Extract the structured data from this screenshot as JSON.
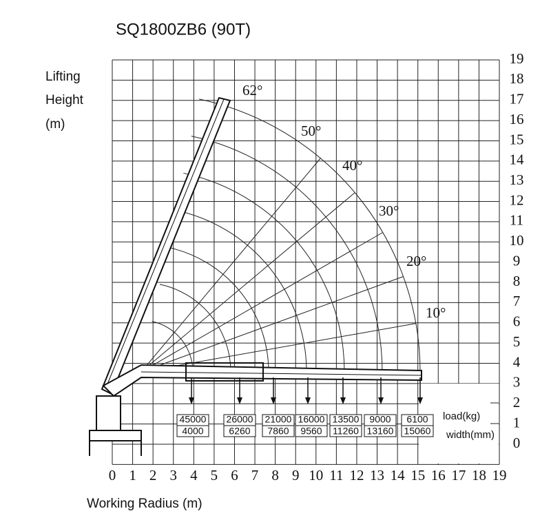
{
  "title": "SQ1800ZB6  (90T)",
  "y_label": [
    "Lifting",
    "Height",
    "(m)"
  ],
  "x_label": "Working Radius (m)",
  "x_ticks": [
    0,
    1,
    2,
    3,
    4,
    5,
    6,
    7,
    8,
    9,
    10,
    11,
    12,
    13,
    14,
    15,
    16,
    17,
    18,
    19
  ],
  "y_ticks": [
    0,
    1,
    2,
    3,
    4,
    5,
    6,
    7,
    8,
    9,
    10,
    11,
    12,
    13,
    14,
    15,
    16,
    17,
    18,
    19
  ],
  "angles": [
    "62°",
    "50°",
    "40°",
    "30°",
    "20°",
    "10°"
  ],
  "loads": [
    {
      "load": 45000,
      "width": 4000
    },
    {
      "load": 26000,
      "width": 6260
    },
    {
      "load": 21000,
      "width": 7860
    },
    {
      "load": 16000,
      "width": 9560
    },
    {
      "load": 13500,
      "width": 11260
    },
    {
      "load": 9000,
      "width": 13160
    },
    {
      "load": 6100,
      "width": 15060
    }
  ],
  "load_label": "load(kg)",
  "width_label": "width(mm)"
}
